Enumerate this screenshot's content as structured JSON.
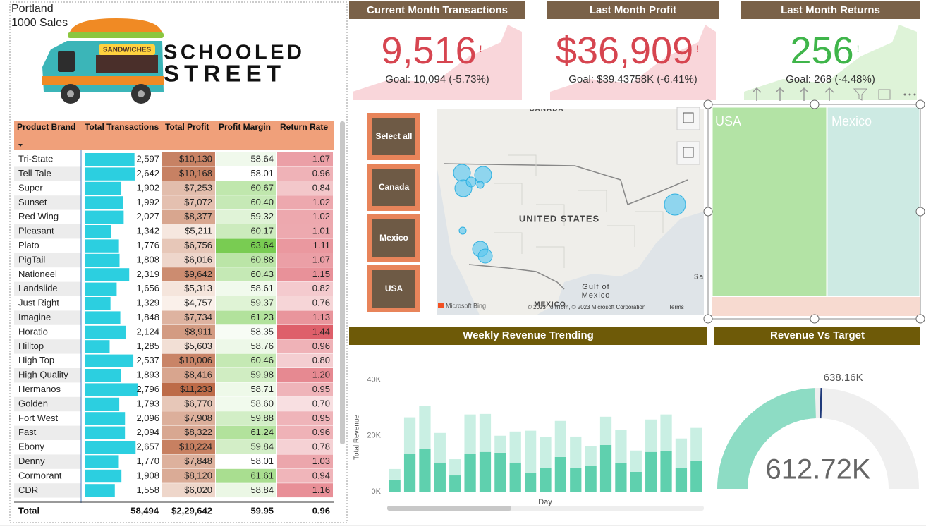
{
  "header": {
    "location": "Portland",
    "subtitle": "1000 Sales",
    "truck_sign": "SANDWICHES",
    "logo": [
      "SCHOOLED",
      "STREET"
    ]
  },
  "kpis": [
    {
      "title": "Current Month Transactions",
      "value": "9,516",
      "alert": "!",
      "goal": "Goal: 10,094 (-5.73%)",
      "color": "#d64550"
    },
    {
      "title": "Last Month Profit",
      "value": "$36,909",
      "alert": "!",
      "goal": "Goal: $39.43758K (-6.41%)",
      "color": "#d64550"
    },
    {
      "title": "Last Month Returns",
      "value": "256",
      "alert": "!",
      "goal": "Goal: 268 (-4.48%)",
      "color": "#3fb54a"
    }
  ],
  "table": {
    "headers": [
      "Product Brand",
      "Total Transactions",
      "Total Profit",
      "Profit Margin",
      "Return Rate"
    ],
    "brands": [
      "Tri-State",
      "Tell Tale",
      "Super",
      "Sunset",
      "Red Wing",
      "Pleasant",
      "Plato",
      "PigTail",
      "Nationeel",
      "Landslide",
      "Just Right",
      "Imagine",
      "Horatio",
      "Hilltop",
      "High Top",
      "High Quality",
      "Hermanos",
      "Golden",
      "Fort West",
      "Fast",
      "Ebony",
      "Denny",
      "Cormorant",
      "CDR"
    ],
    "transactions": {
      "values": [
        2597,
        2642,
        1902,
        1992,
        2027,
        1342,
        1776,
        1808,
        2319,
        1656,
        1329,
        1848,
        2124,
        1285,
        2537,
        1893,
        2796,
        1793,
        2096,
        2094,
        2657,
        1770,
        1908,
        1558
      ],
      "value_labels": [
        "2,597",
        "2,642",
        "1,902",
        "1,992",
        "2,027",
        "1,342",
        "1,776",
        "1,808",
        "2,319",
        "1,656",
        "1,329",
        "1,848",
        "2,124",
        "1,285",
        "2,537",
        "1,893",
        "2,796",
        "1,793",
        "2,096",
        "2,094",
        "2,657",
        "1,770",
        "1,908",
        "1,558"
      ],
      "color": "#2ccfe0"
    },
    "profit": {
      "values": [
        10130,
        10168,
        7253,
        7072,
        8377,
        5211,
        6756,
        6016,
        9642,
        5313,
        4757,
        7734,
        8911,
        5603,
        10006,
        8416,
        11233,
        6770,
        7908,
        8322,
        10224,
        7848,
        8120,
        6020
      ],
      "value_labels": [
        "$10,130",
        "$10,168",
        "$7,253",
        "$7,072",
        "$8,377",
        "$5,211",
        "$6,756",
        "$6,016",
        "$9,642",
        "$5,313",
        "$4,757",
        "$7,734",
        "$8,911",
        "$5,603",
        "$10,006",
        "$8,416",
        "$11,233",
        "$6,770",
        "$7,908",
        "$8,322",
        "$10,224",
        "$7,848",
        "$8,120",
        "$6,020"
      ],
      "color_scale": [
        "#faf0ea",
        "#bd6b48"
      ]
    },
    "margin": {
      "values": [
        58.64,
        58.01,
        60.67,
        60.4,
        59.32,
        60.17,
        63.64,
        60.88,
        60.43,
        58.61,
        59.37,
        61.23,
        58.35,
        58.76,
        60.46,
        59.98,
        58.71,
        58.6,
        59.88,
        61.24,
        59.84,
        58.01,
        61.61,
        58.84
      ],
      "value_labels": [
        "58.64",
        "58.01",
        "60.67",
        "60.40",
        "59.32",
        "60.17",
        "63.64",
        "60.88",
        "60.43",
        "58.61",
        "59.37",
        "61.23",
        "58.35",
        "58.76",
        "60.46",
        "59.98",
        "58.71",
        "58.60",
        "59.88",
        "61.24",
        "59.84",
        "58.01",
        "61.61",
        "58.84"
      ],
      "color_scale": [
        "#ffffff",
        "#79cc52"
      ]
    },
    "return_rate": {
      "values": [
        1.07,
        0.96,
        0.84,
        1.02,
        1.02,
        1.01,
        1.11,
        1.07,
        1.15,
        0.82,
        0.76,
        1.13,
        1.44,
        0.96,
        0.8,
        1.2,
        0.95,
        0.7,
        0.95,
        0.96,
        0.78,
        1.03,
        0.94,
        1.16
      ],
      "value_labels": [
        "1.07",
        "0.96",
        "0.84",
        "1.02",
        "1.02",
        "1.01",
        "1.11",
        "1.07",
        "1.15",
        "0.82",
        "0.76",
        "1.13",
        "1.44",
        "0.96",
        "0.80",
        "1.20",
        "0.95",
        "0.70",
        "0.95",
        "0.96",
        "0.78",
        "1.03",
        "0.94",
        "1.16"
      ],
      "color_scale": [
        "#f8dfe1",
        "#de5f6a"
      ]
    },
    "total": [
      "Total",
      "58,494",
      "$2,29,642",
      "59.95",
      "0.96"
    ]
  },
  "slicer": [
    "Select all",
    "Canada",
    "Mexico",
    "USA"
  ],
  "map": {
    "labels": [
      "CANADA",
      "UNITED STATES",
      "Gulf of",
      "Mexico",
      "MEXICO",
      "Sa"
    ],
    "attribution": [
      "Microsoft Bing",
      "© 2023 TomTom, © 2023 Microsoft Corporation",
      "Terms"
    ]
  },
  "treemap": {
    "labels": [
      "USA",
      "Mexico"
    ]
  },
  "chart_data": [
    {
      "type": "bar",
      "title": "Weekly Revenue Trending",
      "y_label": "Total Revenue",
      "x_label": "Day",
      "stacked": true,
      "ylim": [
        0,
        42000
      ],
      "yticks": [
        {
          "value": 0,
          "label": "0K"
        },
        {
          "value": 20000,
          "label": "20K"
        },
        {
          "value": 40000,
          "label": "40K"
        }
      ],
      "series": [
        {
          "color": "#5fd0ae",
          "values": [
            4300,
            13400,
            15400,
            10400,
            5800,
            13400,
            14200,
            13900,
            10400,
            6600,
            8400,
            12400,
            8400,
            9100,
            16700,
            10100,
            7100,
            14200,
            14400,
            8400,
            11100
          ]
        },
        {
          "color": "#c9efe3",
          "values": [
            3800,
            13200,
            15200,
            10600,
            5800,
            14200,
            13600,
            6100,
            11100,
            15200,
            11100,
            12900,
            11300,
            7100,
            10100,
            11900,
            7600,
            11600,
            13200,
            10600,
            11700
          ]
        }
      ]
    },
    {
      "type": "gauge",
      "title": "Revenue Vs Target",
      "value": 612720,
      "value_label": "612.72K",
      "target": 638160,
      "target_label": "638.16K",
      "range": [
        0,
        1250000
      ],
      "color": "#8ddcc4",
      "track_color": "#efefef",
      "target_color": "#1f3a7a"
    }
  ]
}
